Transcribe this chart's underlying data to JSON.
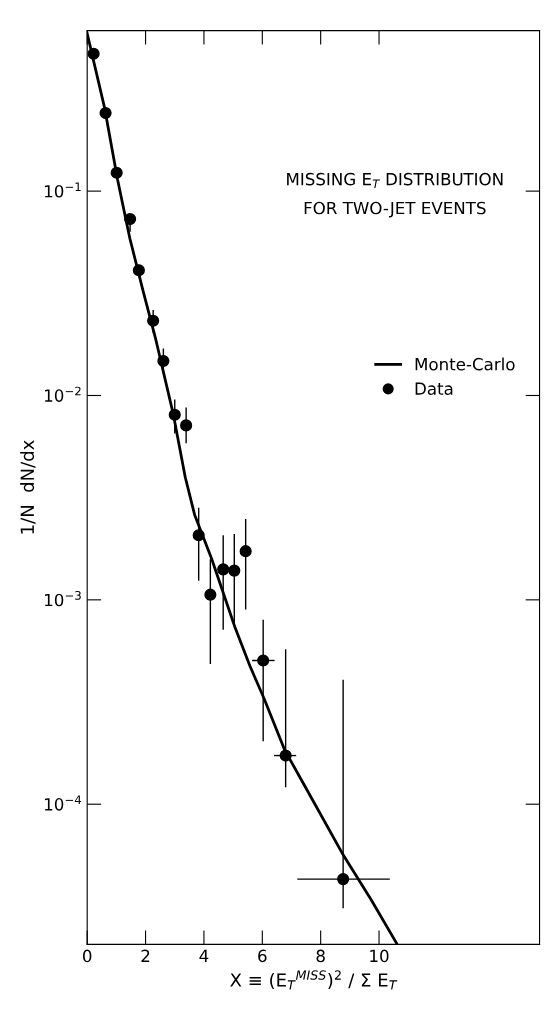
{
  "chart_data": {
    "type": "scatter",
    "title": "MISSING E$_{T}$ DISTRIBUTION\nFOR TWO-JET EVENTS",
    "xlabel": "X ≡ (E$_{T}$$^{MISS}$)$^{2}$ / Σ E$_{T}$",
    "ylabel": "1/N  dN/dx",
    "log": "y",
    "xlim": [
      0,
      15.5
    ],
    "xticks": [
      0,
      2,
      4,
      6,
      8,
      10
    ],
    "ylim": [
      2.06e-05,
      0.61
    ],
    "yticks": [
      {
        "value": 0.1,
        "label": "10$^{−1}$"
      },
      {
        "value": 0.01,
        "label": "10$^{−2}$"
      },
      {
        "value": 0.001,
        "label": "10$^{−3}$"
      },
      {
        "value": 0.0001,
        "label": "10$^{−4}$"
      }
    ],
    "legend": "center right",
    "grid": false,
    "series": [
      {
        "name": "Monte-Carlo",
        "type": "line",
        "color": "#000000",
        "line_style": "solid",
        "marker": "none",
        "x": [
          0,
          0.6,
          1.04,
          1.46,
          1.91,
          2.35,
          2.95,
          3.36,
          3.68,
          4.27,
          5.06,
          5.58,
          6.06,
          6.76,
          7.48,
          8.78,
          9.73,
          10.6
        ],
        "values": [
          0.59,
          0.254,
          0.114,
          0.0588,
          0.0327,
          0.0188,
          0.0081,
          0.00398,
          0.00261,
          0.00158,
          0.000736,
          0.000473,
          0.000329,
          0.000185,
          0.000121,
          5.62e-05,
          3.41e-05,
          2.09e-05
        ]
      },
      {
        "name": "Data",
        "type": "scatter",
        "color": "#000000",
        "marker": "circle",
        "x": [
          0.22,
          0.63,
          1.01,
          1.47,
          1.77,
          2.26,
          2.61,
          3.0,
          3.39,
          3.82,
          4.22,
          4.66,
          5.04,
          5.43,
          6.03,
          6.8,
          8.77
        ],
        "values": [
          0.47,
          0.241,
          0.123,
          0.073,
          0.041,
          0.0232,
          0.01475,
          0.00805,
          0.00714,
          0.00207,
          0.00106,
          0.00141,
          0.00139,
          0.00173,
          0.000505,
          0.000173,
          4.3e-05
        ],
        "errors": [
          null,
          null,
          null,
          [
            0.0632,
            0.0775
          ],
          null,
          [
            0.0203,
            0.0262
          ],
          [
            0.0128,
            0.017
          ],
          [
            0.00652,
            0.00957
          ],
          [
            0.00583,
            0.00873
          ],
          [
            0.00124,
            0.00282
          ],
          [
            0.000486,
            0.00158
          ],
          [
            0.000713,
            0.00207
          ],
          [
            0.000759,
            0.0021
          ],
          [
            0.000898,
            0.00249
          ],
          [
            0.000203,
            0.0008
          ],
          [
            0.000121,
            0.000573
          ],
          [
            3.1e-05,
            0.000406
          ]
        ],
        "xerrors": [
          null,
          null,
          null,
          null,
          null,
          null,
          null,
          null,
          null,
          null,
          null,
          null,
          null,
          null,
          [
            5.65,
            6.42
          ],
          [
            6.4,
            7.16
          ],
          [
            7.2,
            10.37
          ]
        ]
      }
    ]
  }
}
